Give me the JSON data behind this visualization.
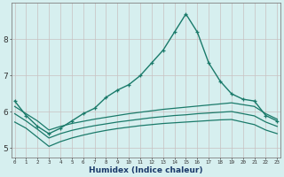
{
  "xlabel": "Humidex (Indice chaleur)",
  "background_color": "#d6efef",
  "grid_color": "#c8c0c0",
  "line_color": "#1a7a6a",
  "x_ticks": [
    0,
    1,
    2,
    3,
    4,
    5,
    6,
    7,
    8,
    9,
    10,
    11,
    12,
    13,
    14,
    15,
    16,
    17,
    18,
    19,
    20,
    21,
    22,
    23
  ],
  "y_ticks": [
    5,
    6,
    7,
    8
  ],
  "ylim": [
    4.75,
    9.0
  ],
  "xlim": [
    -0.3,
    23.3
  ],
  "series": [
    {
      "y": [
        6.3,
        5.9,
        5.6,
        5.4,
        5.55,
        5.75,
        5.95,
        6.1,
        6.4,
        6.6,
        6.75,
        7.0,
        7.35,
        7.7,
        8.2,
        8.7,
        8.2,
        7.35,
        6.85,
        6.5,
        6.35,
        6.3,
        5.9,
        5.75
      ],
      "marker": "+",
      "linewidth": 1.0,
      "markersize": 3.5
    },
    {
      "y": [
        6.15,
        5.95,
        5.75,
        5.5,
        5.6,
        5.68,
        5.74,
        5.8,
        5.85,
        5.9,
        5.95,
        5.99,
        6.03,
        6.07,
        6.1,
        6.13,
        6.16,
        6.19,
        6.22,
        6.25,
        6.2,
        6.15,
        5.95,
        5.8
      ],
      "marker": null,
      "linewidth": 0.9
    },
    {
      "y": [
        5.95,
        5.75,
        5.52,
        5.28,
        5.4,
        5.49,
        5.56,
        5.62,
        5.67,
        5.72,
        5.76,
        5.8,
        5.84,
        5.87,
        5.9,
        5.92,
        5.95,
        5.97,
        5.99,
        6.01,
        5.95,
        5.89,
        5.72,
        5.6
      ],
      "marker": null,
      "linewidth": 0.9
    },
    {
      "y": [
        5.72,
        5.55,
        5.3,
        5.05,
        5.18,
        5.28,
        5.36,
        5.43,
        5.49,
        5.54,
        5.58,
        5.62,
        5.65,
        5.68,
        5.7,
        5.72,
        5.74,
        5.76,
        5.78,
        5.79,
        5.72,
        5.65,
        5.5,
        5.4
      ],
      "marker": null,
      "linewidth": 0.9
    }
  ]
}
